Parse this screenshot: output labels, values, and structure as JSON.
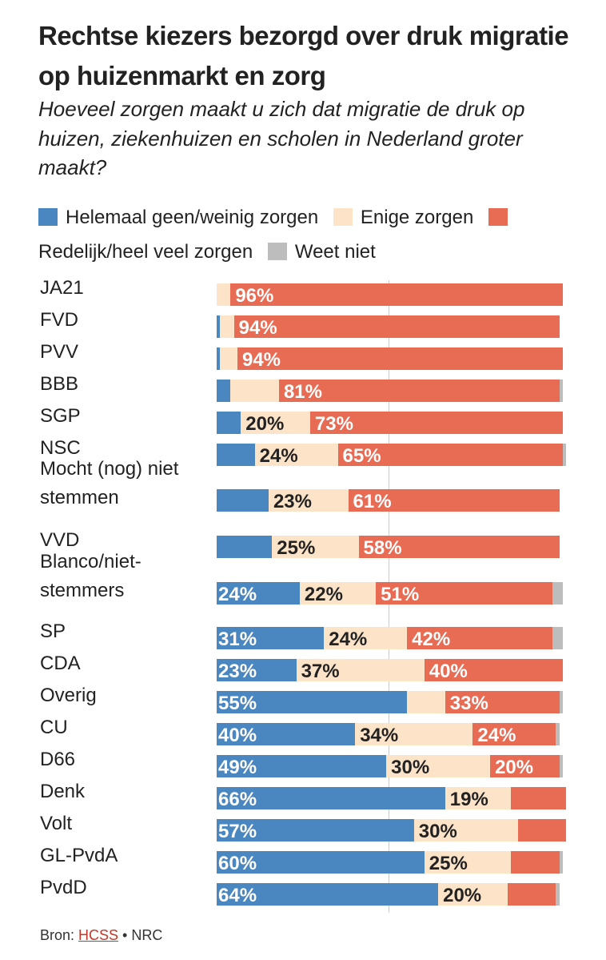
{
  "title": "Rechtse kiezers bezorgd over druk migratie op huizenmarkt en zorg",
  "subtitle": "Hoeveel zorgen maakt u zich dat migratie de druk op huizen, ziekenhuizen en scholen in Nederland groter maakt?",
  "footer": {
    "prefix": "Bron: ",
    "source_link": "HCSS",
    "suffix": " • NRC"
  },
  "colors": {
    "geen": "#4a87c0",
    "enige": "#fde3c8",
    "veel": "#e86b54",
    "weet_niet": "#bdbdbd"
  },
  "chart_data": {
    "type": "bar",
    "stacked": true,
    "orientation": "horizontal",
    "xlim": [
      0,
      100
    ],
    "reference_line": 50,
    "legend": [
      "Helemaal geen/weinig zorgen",
      "Enige zorgen",
      "Redelijk/heel veel zorgen",
      "Weet niet"
    ],
    "legend_placement": "top",
    "categories": [
      "JA21",
      "FVD",
      "PVV",
      "BBB",
      "SGP",
      "NSC",
      "Mocht (nog) niet stemmen",
      "VVD",
      "Blanco/niet-stemmers",
      "SP",
      "CDA",
      "Overig",
      "CU",
      "D66",
      "Denk",
      "Volt",
      "GL-PvdA",
      "PvdD"
    ],
    "series": [
      {
        "name": "Helemaal geen/weinig zorgen",
        "values": [
          0,
          1,
          1,
          4,
          7,
          11,
          15,
          16,
          24,
          31,
          23,
          55,
          40,
          49,
          66,
          57,
          60,
          64
        ],
        "labels": [
          null,
          null,
          null,
          null,
          null,
          null,
          null,
          null,
          "24%",
          "31%",
          "23%",
          "55%",
          "40%",
          "49%",
          "66%",
          "57%",
          "60%",
          "64%"
        ]
      },
      {
        "name": "Enige zorgen",
        "values": [
          4,
          4,
          5,
          14,
          20,
          24,
          23,
          25,
          22,
          24,
          37,
          11,
          34,
          30,
          19,
          30,
          25,
          20
        ],
        "labels": [
          null,
          null,
          null,
          null,
          "20%",
          "24%",
          "23%",
          "25%",
          "22%",
          "24%",
          "37%",
          null,
          "34%",
          "30%",
          "19%",
          "30%",
          "25%",
          "20%"
        ]
      },
      {
        "name": "Redelijk/heel veel zorgen",
        "values": [
          96,
          94,
          94,
          81,
          73,
          65,
          61,
          58,
          51,
          42,
          40,
          33,
          24,
          20,
          16,
          14,
          14,
          14
        ],
        "labels": [
          "96%",
          "94%",
          "94%",
          "81%",
          "73%",
          "65%",
          "61%",
          "58%",
          "51%",
          "42%",
          "40%",
          "33%",
          "24%",
          "20%",
          null,
          null,
          null,
          null
        ]
      },
      {
        "name": "Weet niet",
        "values": [
          0,
          0,
          0,
          1,
          0,
          1,
          0,
          0,
          3,
          3,
          0,
          1,
          1,
          1,
          0,
          0,
          1,
          1
        ],
        "labels": [
          null,
          null,
          null,
          null,
          null,
          null,
          null,
          null,
          null,
          null,
          null,
          null,
          null,
          null,
          null,
          null,
          null,
          null
        ]
      }
    ]
  }
}
